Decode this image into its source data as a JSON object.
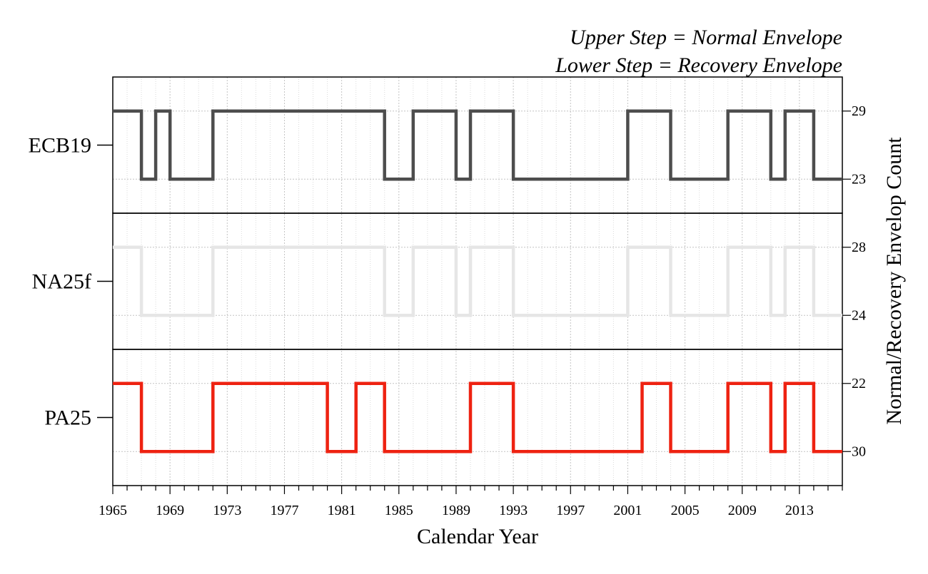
{
  "legend": {
    "line1": "Upper Step = Normal Envelope",
    "line2": "Lower Step = Recovery Envelope"
  },
  "chart_data": {
    "type": "line",
    "step": true,
    "xlabel": "Calendar Year",
    "ylabel": "Normal/Recovery Envelop Count",
    "xlim": [
      1965,
      2016
    ],
    "x_ticks": [
      1965,
      1969,
      1973,
      1977,
      1981,
      1985,
      1989,
      1993,
      1997,
      2001,
      2005,
      2009,
      2013
    ],
    "grid": true,
    "panels": [
      {
        "name": "ECB19",
        "color": "#4d4d4d",
        "upper_value": "29",
        "lower_value": "23",
        "upper_intervals": [
          [
            1965,
            1967
          ],
          [
            1968,
            1969
          ],
          [
            1972,
            1984
          ],
          [
            1986,
            1989
          ],
          [
            1990,
            1993
          ],
          [
            2001,
            2004
          ],
          [
            2008,
            2011
          ],
          [
            2012,
            2014
          ]
        ]
      },
      {
        "name": "NA25f",
        "color": "#e6e6e6",
        "upper_value": "28",
        "lower_value": "24",
        "upper_intervals": [
          [
            1965,
            1967
          ],
          [
            1972,
            1984
          ],
          [
            1986,
            1989
          ],
          [
            1990,
            1993
          ],
          [
            2001,
            2004
          ],
          [
            2008,
            2011
          ],
          [
            2012,
            2014
          ]
        ]
      },
      {
        "name": "PA25",
        "color": "#ee2211",
        "upper_value": "22",
        "lower_value": "30",
        "upper_intervals": [
          [
            1965,
            1967
          ],
          [
            1972,
            1980
          ],
          [
            1982,
            1984
          ],
          [
            1990,
            1993
          ],
          [
            2002,
            2004
          ],
          [
            2008,
            2011
          ],
          [
            2012,
            2014
          ]
        ]
      }
    ]
  }
}
